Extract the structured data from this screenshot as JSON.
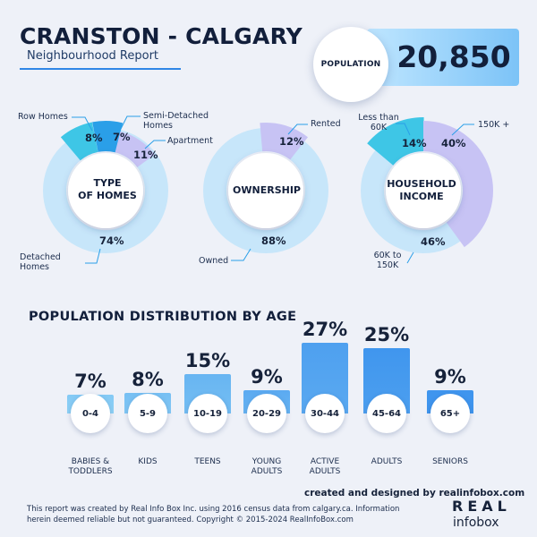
{
  "header": {
    "title": "CRANSTON - CALGARY",
    "subtitle": "Neighbourhood Report"
  },
  "population": {
    "label": "POPULATION",
    "value": "20,850"
  },
  "colors": {
    "dark_blue": "#2a9fe8",
    "mid_blue": "#7cc8f2",
    "light_blue": "#c7e6fa",
    "lavender": "#c7c3f4",
    "cyan": "#3ec6e6",
    "bar_light": "#8fd2f6",
    "bar_dark": "#3f95ee"
  },
  "chart_data": [
    {
      "type": "pie",
      "title": "TYPE OF HOMES",
      "slices": [
        {
          "label": "Detached Homes",
          "value": 74,
          "value_label": "74%"
        },
        {
          "label": "Row Homes",
          "value": 8,
          "value_label": "8%"
        },
        {
          "label": "Semi-Detached Homes",
          "value": 7,
          "value_label": "7%"
        },
        {
          "label": "Apartment",
          "value": 11,
          "value_label": "11%"
        }
      ]
    },
    {
      "type": "pie",
      "title": "OWNERSHIP",
      "slices": [
        {
          "label": "Owned",
          "value": 88,
          "value_label": "88%"
        },
        {
          "label": "Rented",
          "value": 12,
          "value_label": "12%"
        }
      ]
    },
    {
      "type": "pie",
      "title": "HOUSEHOLD INCOME",
      "slices": [
        {
          "label": "60K to 150K",
          "value": 46,
          "value_label": "46%"
        },
        {
          "label": "Less than 60K",
          "value": 14,
          "value_label": "14%"
        },
        {
          "label": "150K +",
          "value": 40,
          "value_label": "40%"
        }
      ]
    },
    {
      "type": "bar",
      "title": "POPULATION DISTRIBUTION BY AGE",
      "categories": [
        "0-4",
        "5-9",
        "10-19",
        "20-29",
        "30-44",
        "45-64",
        "65+"
      ],
      "category_names": [
        "BABIES & TODDLERS",
        "KIDS",
        "TEENS",
        "YOUNG ADULTS",
        "ACTIVE ADULTS",
        "ADULTS",
        "SENIORS"
      ],
      "values": [
        7,
        8,
        15,
        9,
        27,
        25,
        9
      ],
      "value_labels": [
        "7%",
        "8%",
        "15%",
        "9%",
        "27%",
        "25%",
        "9%"
      ]
    }
  ],
  "labels": {
    "homes_center_1": "TYPE",
    "homes_center_2": "OF HOMES",
    "own_center": "OWNERSHIP",
    "income_center_1": "HOUSEHOLD",
    "income_center_2": "INCOME",
    "row_homes": "Row Homes",
    "semi_1": "Semi-Detached",
    "semi_2": "Homes",
    "apartment": "Apartment",
    "detached_1": "Detached",
    "detached_2": "Homes",
    "rented": "Rented",
    "owned": "Owned",
    "less_1": "Less than",
    "less_2": "60K",
    "high": "150K +",
    "mid_1": "60K to",
    "mid_2": "150K",
    "babies_1": "BABIES &",
    "babies_2": "TODDLERS",
    "young_1": "YOUNG",
    "young_2": "ADULTS",
    "active_1": "ACTIVE",
    "active_2": "ADULTS"
  },
  "footer": {
    "credit": "created and designed by realinfobox.com",
    "disclaimer": "This report was created by Real Info Box Inc. using 2016 census data from calgary.ca. Information herein deemed reliable but not guaranteed. Copyright © 2015-2024 RealInfoBox.com",
    "logo_top": "REAL",
    "logo_bottom": "infobox"
  }
}
